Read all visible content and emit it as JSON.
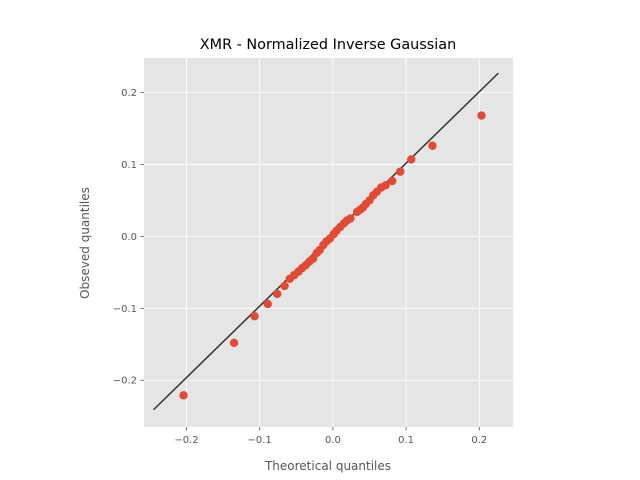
{
  "chart_data": {
    "type": "scatter",
    "title": "XMR - Normalized Inverse Gaussian",
    "xlabel": "Theoretical quantiles",
    "ylabel": "Obseved quantiles",
    "xlim": [
      -0.258,
      0.246
    ],
    "ylim": [
      -0.265,
      0.248
    ],
    "xticks": [
      -0.2,
      -0.1,
      0.0,
      0.1,
      0.2
    ],
    "xtick_labels": [
      "−0.2",
      "−0.1",
      "0.0",
      "0.1",
      "0.2"
    ],
    "yticks": [
      -0.2,
      -0.1,
      0.0,
      0.1,
      0.2
    ],
    "ytick_labels": [
      "−0.2",
      "−0.1",
      "0.0",
      "0.1",
      "0.2"
    ],
    "grid": true,
    "style": "ggplot",
    "colors": {
      "background": "#e5e5e5",
      "grid": "#ffffff",
      "points": "#e24a33",
      "reference_line": "#333333",
      "text": "#555555"
    },
    "reference_line": {
      "x": [
        -0.245,
        0.226
      ],
      "y": [
        -0.241,
        0.227
      ]
    },
    "series": [
      {
        "x": [
          -0.204,
          -0.135,
          -0.107,
          -0.089,
          -0.076,
          -0.066,
          -0.059,
          -0.053,
          -0.047,
          -0.042,
          -0.037,
          -0.032,
          -0.027,
          -0.022,
          -0.018,
          -0.013,
          -0.009,
          -0.004,
          0.001,
          0.005,
          0.01,
          0.015,
          0.019,
          0.024,
          0.033,
          0.037,
          0.041,
          0.045,
          0.05,
          0.055,
          0.06,
          0.066,
          0.072,
          0.081,
          0.092,
          0.107,
          0.136,
          0.203
        ],
        "y": [
          -0.221,
          -0.148,
          -0.111,
          -0.094,
          -0.08,
          -0.069,
          -0.059,
          -0.054,
          -0.049,
          -0.044,
          -0.04,
          -0.035,
          -0.031,
          -0.023,
          -0.019,
          -0.012,
          -0.007,
          -0.003,
          0.003,
          0.008,
          0.013,
          0.018,
          0.022,
          0.025,
          0.034,
          0.037,
          0.04,
          0.045,
          0.05,
          0.057,
          0.062,
          0.068,
          0.071,
          0.077,
          0.09,
          0.107,
          0.126,
          0.168
        ]
      }
    ]
  }
}
